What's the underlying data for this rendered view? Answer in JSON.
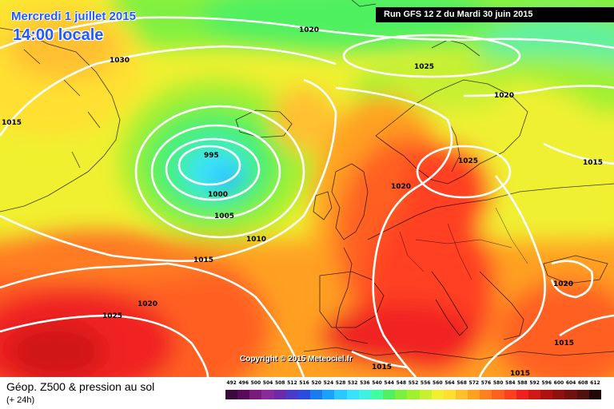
{
  "header": {
    "date": "Mercredi 1 juillet 2015",
    "time": "14:00 locale",
    "run": "Run GFS 12 Z du Mardi 30 juin 2015"
  },
  "copyright": "Copyright © 2015 Meteociel.fr",
  "footer": {
    "title": "Géop. Z500 & pression au sol",
    "lead": "(+ 24h)"
  },
  "isobars": [
    {
      "label": "1030"
    },
    {
      "label": "1015"
    },
    {
      "label": "1020"
    },
    {
      "label": "1025"
    },
    {
      "label": "1020"
    },
    {
      "label": "995"
    },
    {
      "label": "1000"
    },
    {
      "label": "1005"
    },
    {
      "label": "1010"
    },
    {
      "label": "1015"
    },
    {
      "label": "1020"
    },
    {
      "label": "1025"
    },
    {
      "label": "1020"
    },
    {
      "label": "1025"
    },
    {
      "label": "1015"
    },
    {
      "label": "1020"
    },
    {
      "label": "1015"
    },
    {
      "label": "1015"
    },
    {
      "label": "1015"
    }
  ],
  "legend": {
    "labels": [
      "492",
      "496",
      "500",
      "504",
      "508",
      "512",
      "516",
      "520",
      "524",
      "528",
      "532",
      "536",
      "540",
      "544",
      "548",
      "552",
      "556",
      "560",
      "564",
      "568",
      "572",
      "576",
      "580",
      "584",
      "588",
      "592",
      "596",
      "600",
      "604",
      "608",
      "612"
    ],
    "colors": [
      "#3a0a3a",
      "#5a0a5a",
      "#7a1a7a",
      "#8a2a9a",
      "#6a2aaa",
      "#4a3aca",
      "#2a4ae0",
      "#1a7af0",
      "#1aa0ff",
      "#2ac8ff",
      "#3ae0ff",
      "#40f0e0",
      "#40ffa0",
      "#50f060",
      "#7af040",
      "#a0f030",
      "#c8f030",
      "#f0f030",
      "#ffe030",
      "#ffc030",
      "#ffa020",
      "#ff8020",
      "#ff6020",
      "#ff4020",
      "#f02020",
      "#d01818",
      "#b01010",
      "#901010",
      "#701010",
      "#501010",
      "#200808"
    ]
  }
}
